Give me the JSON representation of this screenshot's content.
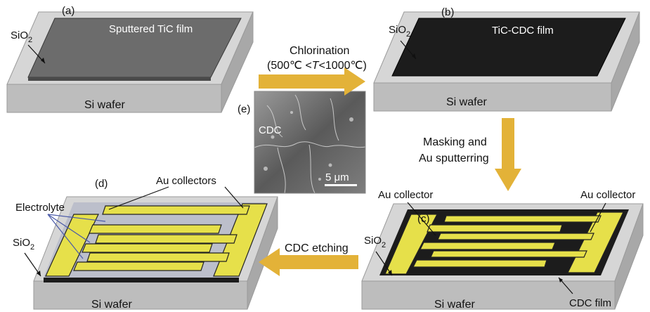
{
  "panels": {
    "a": {
      "tag": "(a)",
      "film_label": "Sputtered TiC film",
      "oxide_label": "SiO",
      "oxide_sub": "2",
      "wafer_label": "Si wafer"
    },
    "b": {
      "tag": "(b)",
      "film_label": "TiC-CDC film",
      "oxide_label": "SiO",
      "oxide_sub": "2",
      "wafer_label": "Si wafer"
    },
    "c": {
      "tag": "(c)",
      "collector_left": "Au collector",
      "collector_right": "Au collector",
      "oxide_label": "SiO",
      "oxide_sub": "2",
      "wafer_label": "Si wafer",
      "film_label": "CDC film"
    },
    "d": {
      "tag": "(d)",
      "collectors_label": "Au collectors",
      "electrolyte_label": "Electrolyte",
      "oxide_label": "SiO",
      "oxide_sub": "2",
      "wafer_label": "Si wafer"
    },
    "e": {
      "tag": "(e)",
      "material_label": "CDC",
      "scale_label": "5 μm"
    }
  },
  "steps": {
    "chlorination": {
      "line1": "Chlorination",
      "line2_prefix": "(500℃ <",
      "line2_var": "T",
      "line2_suffix": "<1000℃)"
    },
    "masking": {
      "line1": "Masking and",
      "line2": "Au sputterring"
    },
    "etching": {
      "line1": "CDC etching"
    }
  },
  "colors": {
    "arrow": "#e3b238",
    "gold": "#e6e04a",
    "gold_edge": "#222222",
    "wafer_top": "#d6d6d6",
    "wafer_front": "#bdbdbd",
    "wafer_side": "#a8a8a8",
    "film_gray": "#6c6c6c",
    "film_black": "#1c1c1c"
  }
}
